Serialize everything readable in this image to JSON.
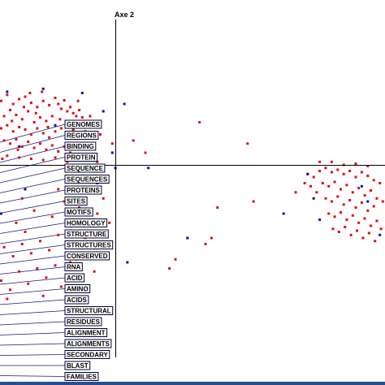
{
  "chart_data": {
    "type": "scatter",
    "axis_y_label": "Axe 2",
    "grid": false,
    "colors": {
      "red_points": "#dd1111",
      "blue_points": "#1111aa",
      "axes": "#000000",
      "leader_lines": "#1a1a7a",
      "bottom_bar": "#2a4d8f"
    },
    "series": [
      {
        "color_name": "red",
        "points": [
          [
            -2.0,
            1.1
          ],
          [
            -1.9,
            1.05
          ],
          [
            -1.8,
            1.15
          ],
          [
            -1.7,
            1.0
          ],
          [
            -1.6,
            1.08
          ],
          [
            -1.5,
            1.12
          ],
          [
            -1.4,
            1.02
          ],
          [
            -1.3,
            0.95
          ],
          [
            -1.2,
            1.05
          ],
          [
            -1.1,
            0.98
          ],
          [
            -1.0,
            1.1
          ],
          [
            -0.95,
            1.0
          ],
          [
            -0.9,
            0.92
          ],
          [
            -0.85,
            1.06
          ],
          [
            -0.8,
            0.88
          ],
          [
            -0.75,
            0.95
          ],
          [
            -0.7,
            0.85
          ],
          [
            -0.65,
            0.8
          ],
          [
            -0.6,
            0.9
          ],
          [
            -0.55,
            0.78
          ],
          [
            -1.95,
            0.85
          ],
          [
            -1.85,
            0.8
          ],
          [
            -1.75,
            0.9
          ],
          [
            -1.65,
            0.82
          ],
          [
            -1.55,
            0.75
          ],
          [
            -1.45,
            0.88
          ],
          [
            -1.35,
            0.7
          ],
          [
            -1.25,
            0.78
          ],
          [
            -1.15,
            0.72
          ],
          [
            -1.05,
            0.8
          ],
          [
            -1.9,
            0.6
          ],
          [
            -1.8,
            0.65
          ],
          [
            -1.7,
            0.55
          ],
          [
            -1.6,
            0.62
          ],
          [
            -1.5,
            0.58
          ],
          [
            -1.4,
            0.5
          ],
          [
            -1.3,
            0.6
          ],
          [
            -1.2,
            0.52
          ],
          [
            -1.1,
            0.45
          ],
          [
            -1.0,
            0.55
          ],
          [
            -0.9,
            0.6
          ],
          [
            -0.8,
            0.5
          ],
          [
            -0.7,
            0.58
          ],
          [
            -0.6,
            0.48
          ],
          [
            -0.5,
            0.55
          ],
          [
            -0.45,
            0.62
          ],
          [
            -1.85,
            0.4
          ],
          [
            -1.75,
            0.35
          ],
          [
            -1.65,
            0.42
          ],
          [
            -1.55,
            0.3
          ],
          [
            -1.45,
            0.38
          ],
          [
            -1.35,
            0.28
          ],
          [
            -1.25,
            0.35
          ],
          [
            -1.15,
            0.25
          ],
          [
            -1.05,
            0.32
          ],
          [
            -0.95,
            0.22
          ],
          [
            -0.85,
            0.3
          ],
          [
            -0.75,
            0.2
          ],
          [
            -0.65,
            0.28
          ],
          [
            -0.55,
            0.35
          ],
          [
            -1.95,
            0.2
          ],
          [
            -1.8,
            0.15
          ],
          [
            -1.6,
            0.12
          ],
          [
            -1.4,
            0.1
          ],
          [
            -1.2,
            0.08
          ],
          [
            -1.0,
            0.12
          ],
          [
            -0.8,
            0.05
          ],
          [
            -0.35,
            0.45
          ],
          [
            -0.25,
            0.5
          ],
          [
            -0.05,
            0.35
          ],
          [
            0.3,
            0.4
          ],
          [
            0.5,
            0.2
          ],
          [
            -0.2,
            -0.2
          ],
          [
            -0.3,
            0.05
          ],
          [
            -2.0,
            0.5
          ],
          [
            -1.98,
            0.3
          ],
          [
            -1.92,
            0.95
          ],
          [
            -1.72,
            0.72
          ],
          [
            -1.52,
            0.95
          ],
          [
            -1.32,
            0.85
          ],
          [
            -1.12,
            0.62
          ],
          [
            -0.92,
            0.75
          ],
          [
            -0.72,
            0.7
          ],
          [
            -0.42,
            0.8
          ],
          [
            -0.62,
            1.05
          ],
          [
            -1.42,
            1.18
          ],
          [
            -1.22,
            1.2
          ],
          [
            -0.82,
            0.15
          ],
          [
            -1.62,
            0.25
          ],
          [
            -1.88,
            0.1
          ],
          [
            3.4,
            -0.1
          ],
          [
            3.5,
            -0.05
          ],
          [
            3.6,
            -0.12
          ],
          [
            3.7,
            -0.08
          ],
          [
            3.8,
            -0.15
          ],
          [
            3.9,
            -0.1
          ],
          [
            4.0,
            -0.2
          ],
          [
            4.1,
            -0.12
          ],
          [
            4.2,
            -0.18
          ],
          [
            4.3,
            -0.25
          ],
          [
            3.45,
            -0.3
          ],
          [
            3.55,
            -0.35
          ],
          [
            3.65,
            -0.28
          ],
          [
            3.75,
            -0.4
          ],
          [
            3.85,
            -0.33
          ],
          [
            3.95,
            -0.45
          ],
          [
            4.05,
            -0.38
          ],
          [
            4.15,
            -0.5
          ],
          [
            4.25,
            -0.42
          ],
          [
            4.35,
            -0.55
          ],
          [
            3.5,
            -0.55
          ],
          [
            3.6,
            -0.6
          ],
          [
            3.7,
            -0.52
          ],
          [
            3.8,
            -0.65
          ],
          [
            3.9,
            -0.58
          ],
          [
            4.0,
            -0.7
          ],
          [
            4.1,
            -0.62
          ],
          [
            4.2,
            -0.75
          ],
          [
            4.3,
            -0.68
          ],
          [
            4.4,
            -0.3
          ],
          [
            3.55,
            -0.8
          ],
          [
            3.65,
            -0.85
          ],
          [
            3.75,
            -0.78
          ],
          [
            3.85,
            -0.9
          ],
          [
            3.95,
            -0.83
          ],
          [
            4.05,
            -0.95
          ],
          [
            4.15,
            -0.88
          ],
          [
            4.25,
            -1.0
          ],
          [
            4.35,
            -0.92
          ],
          [
            4.45,
            -0.6
          ],
          [
            3.62,
            -1.05
          ],
          [
            3.72,
            -1.1
          ],
          [
            3.82,
            -1.02
          ],
          [
            3.92,
            -1.15
          ],
          [
            4.02,
            -1.08
          ],
          [
            4.12,
            -1.2
          ],
          [
            4.22,
            -1.12
          ],
          [
            4.32,
            -1.25
          ],
          [
            4.42,
            -1.05
          ],
          [
            4.48,
            -0.85
          ],
          [
            3.3,
            -0.2
          ],
          [
            3.35,
            -0.45
          ],
          [
            3.25,
            -0.35
          ],
          [
            3.4,
            0.05
          ],
          [
            3.6,
            0.05
          ],
          [
            3.8,
            0.0
          ],
          [
            4.0,
            0.02
          ],
          [
            4.2,
            -0.02
          ],
          [
            3.2,
            -0.15
          ],
          [
            3.15,
            -0.3
          ],
          [
            2.2,
            0.35
          ],
          [
            1.4,
            0.7
          ],
          [
            3.0,
            -0.45
          ],
          [
            2.3,
            -0.6
          ],
          [
            1.7,
            -0.7
          ],
          [
            1.6,
            -1.2
          ],
          [
            1.5,
            -1.3
          ],
          [
            1.2,
            -1.2
          ],
          [
            1.0,
            -1.55
          ],
          [
            0.9,
            -1.7
          ],
          [
            -0.1,
            -0.95
          ],
          [
            -0.3,
            -0.8
          ],
          [
            -0.4,
            -1.0
          ],
          [
            -0.55,
            -0.9
          ],
          [
            -0.5,
            -1.2
          ],
          [
            -0.7,
            -1.1
          ],
          [
            -0.8,
            -1.3
          ],
          [
            -0.95,
            -1.15
          ],
          [
            -1.1,
            -1.4
          ],
          [
            -1.25,
            -1.25
          ],
          [
            -1.4,
            -1.45
          ],
          [
            -1.55,
            -1.3
          ],
          [
            -1.7,
            -1.5
          ],
          [
            -1.85,
            -1.35
          ],
          [
            -1.95,
            -1.6
          ],
          [
            -0.65,
            -1.55
          ],
          [
            -1.0,
            -1.65
          ],
          [
            -1.3,
            -1.7
          ],
          [
            -1.6,
            -1.75
          ],
          [
            -1.9,
            -1.9
          ],
          [
            -0.45,
            -1.5
          ],
          [
            -0.75,
            -1.6
          ],
          [
            -1.15,
            -1.85
          ],
          [
            -1.45,
            -1.95
          ],
          [
            -1.75,
            -2.05
          ],
          [
            -0.6,
            -0.7
          ],
          [
            -0.85,
            -0.6
          ],
          [
            -1.05,
            -0.85
          ],
          [
            -1.35,
            -0.75
          ],
          [
            -1.65,
            -0.95
          ],
          [
            -1.98,
            -1.1
          ],
          [
            -1.5,
            -1.1
          ],
          [
            -0.25,
            -1.35
          ],
          [
            -0.35,
            -1.75
          ],
          [
            -0.9,
            -2.0
          ],
          [
            -1.2,
            -2.15
          ],
          [
            -1.8,
            -2.2
          ],
          [
            -0.2,
            -0.55
          ],
          [
            -0.95,
            -0.4
          ],
          [
            -1.55,
            -0.55
          ]
        ]
      },
      {
        "color_name": "blue",
        "points": [
          [
            -1.8,
            1.2
          ],
          [
            -1.2,
            1.25
          ],
          [
            -0.55,
            1.18
          ],
          [
            -0.2,
            0.88
          ],
          [
            -1.0,
            0.65
          ],
          [
            -0.65,
            0.3
          ],
          [
            -0.05,
            0.2
          ],
          [
            -1.6,
            0.3
          ],
          [
            0.15,
            1.0
          ],
          [
            0.0,
            -0.05
          ],
          [
            0.55,
            -0.05
          ],
          [
            3.2,
            -0.15
          ],
          [
            3.3,
            -0.55
          ],
          [
            4.4,
            -1.15
          ],
          [
            4.2,
            -0.6
          ],
          [
            3.4,
            -0.9
          ],
          [
            2.8,
            -0.8
          ],
          [
            1.2,
            -1.2
          ],
          [
            0.2,
            -1.6
          ],
          [
            4.1,
            -0.35
          ],
          [
            -0.3,
            -0.3
          ],
          [
            -1.5,
            -0.4
          ],
          [
            -1.9,
            -0.8
          ],
          [
            4.48,
            0.02
          ]
        ]
      }
    ],
    "terms": [
      "GENOMES",
      "REGIONS",
      "BINDING",
      "PROTEIN",
      "SEQUENCE",
      "SEQUENCES",
      "PROTEINS",
      "SITES",
      "MOTIFS",
      "HOMOLOGY",
      "STRUCTURE",
      "STRUCTURES",
      "CONSERVED",
      "RNA",
      "ACID",
      "AMINO",
      "ACIDS",
      "STRUCTURAL",
      "RESIDUES",
      "ALIGNMENT",
      "ALIGNMENTS",
      "SECONDARY",
      "BLAST",
      "FAMILIES"
    ]
  }
}
